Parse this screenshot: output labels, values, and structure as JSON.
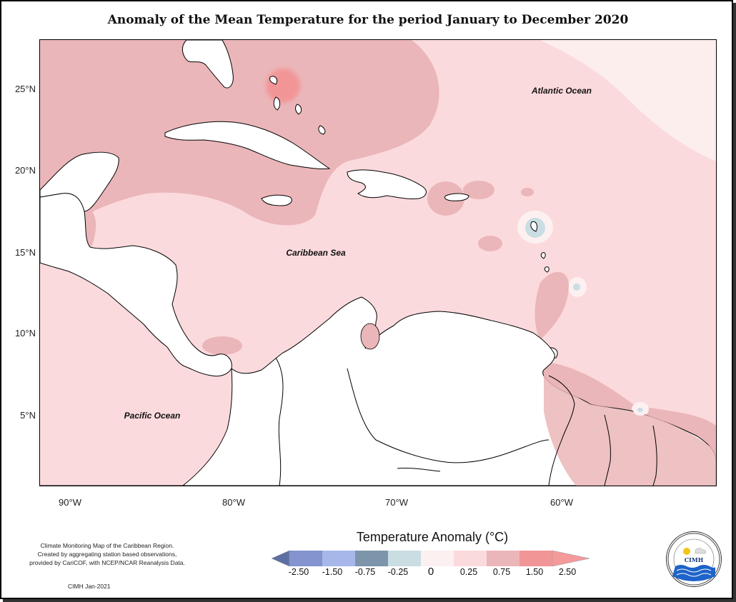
{
  "title": "Anomaly of the Mean Temperature for the period January to December 2020",
  "map": {
    "latitude_labels": [
      "25°N",
      "20°N",
      "15°N",
      "10°N",
      "5°N"
    ],
    "longitude_labels": [
      "90°W",
      "80°W",
      "70°W",
      "60°W"
    ],
    "place_labels": {
      "atlantic": "Atlantic Ocean",
      "caribbean": "Caribbean Sea",
      "pacific": "Pacific Ocean"
    }
  },
  "legend": {
    "title": "Temperature Anomaly (°C)",
    "bins": [
      {
        "label": "-2.50",
        "color": "#5e6fa3"
      },
      {
        "label": "-1.50",
        "color": "#8394cf"
      },
      {
        "label": "-0.75",
        "color": "#a7b7ea"
      },
      {
        "label": "-0.25",
        "color": "#7d95ab"
      },
      {
        "label": "0",
        "color": "#c9dde3"
      },
      {
        "label": "0.25",
        "color": "#fdf0f0"
      },
      {
        "label": "0.75",
        "color": "#fbdadd"
      },
      {
        "label": "1.50",
        "color": "#ebb6b9"
      },
      {
        "label": "2.50",
        "color": "#f29597"
      }
    ],
    "top_color": "#f49a9b"
  },
  "credit": {
    "line1": "Climate Monitoring Map of the Caribbean Region.",
    "line2": "Created by aggregating station based observations,",
    "line3": "provided by CariCOF, with NCEP/NCAR Reanalysis Data.",
    "line4": "CIMH Jan-2021"
  },
  "logo": {
    "text": "CIMH",
    "ring_text": "Caribbean Institute for Meteorology and Hydrology"
  }
}
